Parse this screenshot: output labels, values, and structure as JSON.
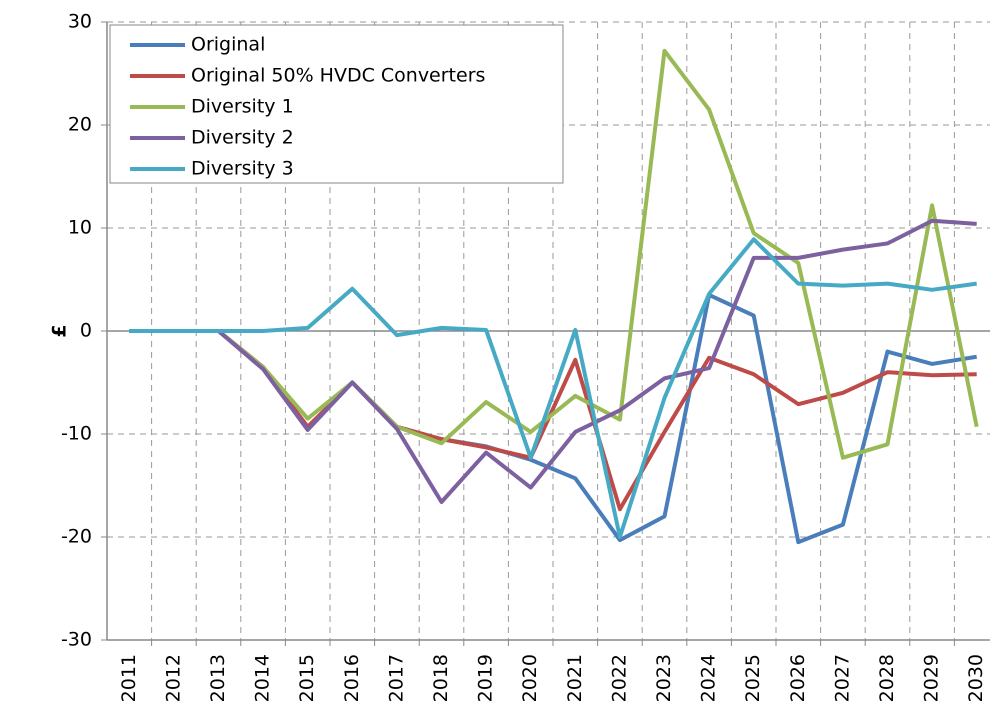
{
  "chart_data": {
    "type": "line",
    "y_label": "£",
    "categories": [
      "2011",
      "2012",
      "2013",
      "2014",
      "2015",
      "2016",
      "2017",
      "2018",
      "2019",
      "2020",
      "2021",
      "2022",
      "2023",
      "2024",
      "2025",
      "2026",
      "2027",
      "2028",
      "2029",
      "2030"
    ],
    "series": [
      {
        "name": "Original",
        "color": "#4a7ebb",
        "values": [
          0,
          0,
          0,
          -3.5,
          -9.5,
          -5,
          -9.3,
          -10.5,
          -11.2,
          -12.5,
          -14.3,
          -20.3,
          -18,
          3.5,
          1.5,
          -20.5,
          -18.8,
          -2,
          -3.2,
          -2.5
        ]
      },
      {
        "name": "Original 50% HVDC Converters",
        "color": "#be4b48",
        "values": [
          0,
          0,
          0,
          -3.5,
          -9.3,
          -5,
          -9.3,
          -10.5,
          -11.3,
          -12.3,
          -2.8,
          -17.3,
          -9.8,
          -2.6,
          -4.2,
          -7.1,
          -6,
          -4,
          -4.3,
          -4.2
        ]
      },
      {
        "name": "Diversity 1",
        "color": "#98b954",
        "values": [
          0,
          0,
          0,
          -3.5,
          -8.5,
          -5,
          -9.3,
          -10.9,
          -6.9,
          -9.8,
          -6.3,
          -8.6,
          27.2,
          21.5,
          9.5,
          6.6,
          -12.3,
          -11,
          12.2,
          -9.3
        ]
      },
      {
        "name": "Diversity 2",
        "color": "#7d60a0",
        "values": [
          0,
          0,
          0,
          -3.7,
          -9.6,
          -5,
          -9.5,
          -16.6,
          -11.8,
          -15.2,
          -9.8,
          -7.7,
          -4.6,
          -3.6,
          7.1,
          7.1,
          7.9,
          8.5,
          10.7,
          10.4
        ]
      },
      {
        "name": "Diversity 3",
        "color": "#46aac5",
        "values": [
          0,
          0,
          0,
          0,
          0.3,
          4.1,
          -0.4,
          0.3,
          0.1,
          -12.3,
          0.1,
          -20,
          -6.5,
          3.6,
          8.9,
          4.6,
          4.4,
          4.6,
          4,
          4.6
        ]
      }
    ],
    "ylim": [
      -30,
      30
    ],
    "yticks": [
      -30,
      -20,
      -10,
      0,
      10,
      20,
      30
    ],
    "grid": true,
    "legend": "upper left"
  }
}
